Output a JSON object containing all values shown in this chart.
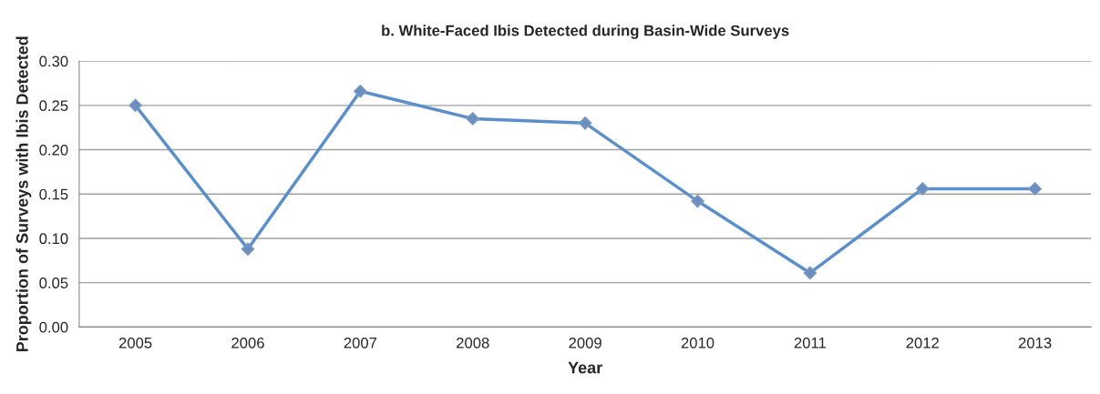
{
  "chart_data": {
    "type": "line",
    "title": "b. White-Faced Ibis Detected during Basin-Wide Surveys",
    "xlabel": "Year",
    "ylabel": "Proportion of Surveys with Ibis Detected",
    "categories": [
      "2005",
      "2006",
      "2007",
      "2008",
      "2009",
      "2010",
      "2011",
      "2012",
      "2013"
    ],
    "series": [
      {
        "color": "#5b8fc9",
        "values": [
          0.25,
          0.088,
          0.266,
          0.235,
          0.23,
          0.142,
          0.061,
          0.156,
          0.156
        ]
      }
    ],
    "ylim": [
      0,
      0.3
    ],
    "yticks": [
      {
        "value": 0,
        "label": "0.00"
      },
      {
        "value": 0.05,
        "label": "0.05"
      },
      {
        "value": 0.1,
        "label": "0.10"
      },
      {
        "value": 0.15,
        "label": "0.15"
      },
      {
        "value": 0.2,
        "label": "0.20"
      },
      {
        "value": 0.25,
        "label": "0.25"
      },
      {
        "value": 0.3,
        "label": "0.30"
      }
    ],
    "grid": "y",
    "marker": "diamond",
    "line_style": "solid"
  }
}
